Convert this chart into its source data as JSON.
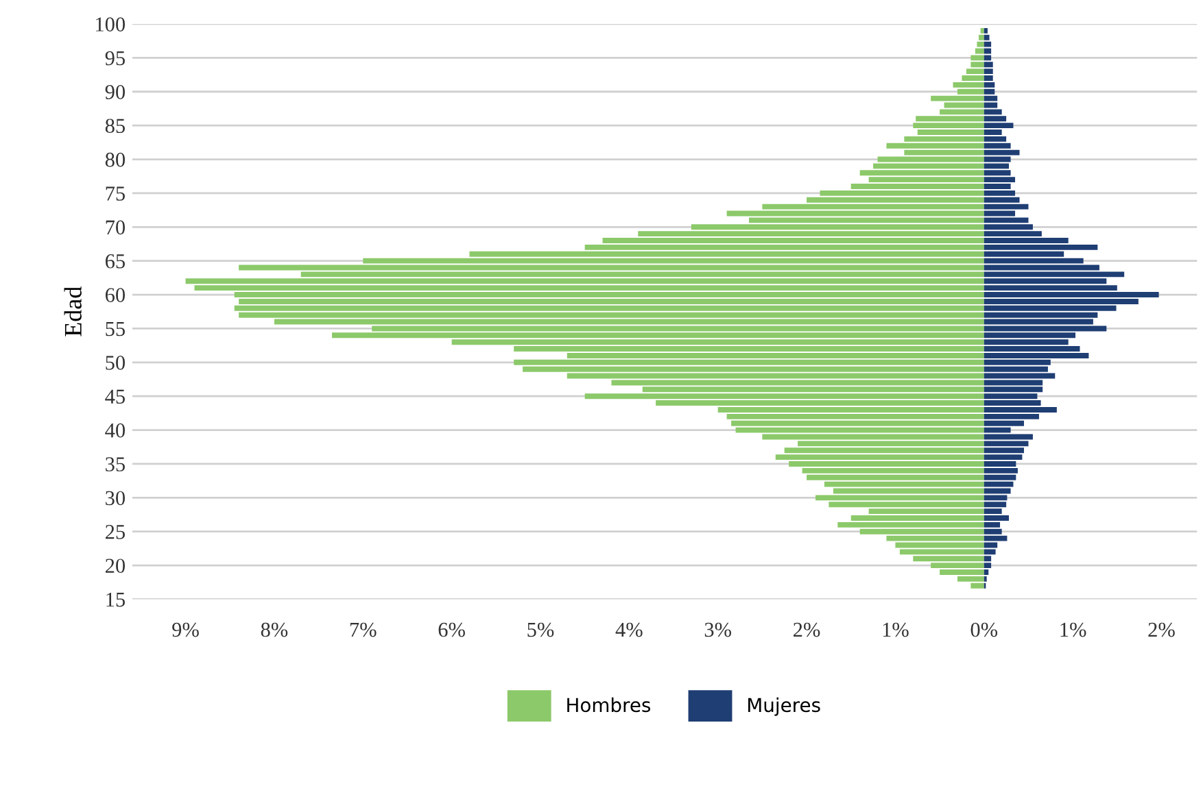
{
  "chart_data": {
    "type": "bar",
    "orientation": "horizontal",
    "stacked": true,
    "ylabel": "Edad",
    "x": [
      17,
      18,
      19,
      20,
      21,
      22,
      23,
      24,
      25,
      26,
      27,
      28,
      29,
      30,
      31,
      32,
      33,
      34,
      35,
      36,
      37,
      38,
      39,
      40,
      41,
      42,
      43,
      44,
      45,
      46,
      47,
      48,
      49,
      50,
      51,
      52,
      53,
      54,
      55,
      56,
      57,
      58,
      59,
      60,
      61,
      62,
      63,
      64,
      65,
      66,
      67,
      68,
      69,
      70,
      71,
      72,
      73,
      74,
      75,
      76,
      77,
      78,
      79,
      80,
      81,
      82,
      83,
      84,
      85,
      86,
      87,
      88,
      89,
      90,
      91,
      92,
      93,
      94,
      95,
      96,
      97,
      98,
      99
    ],
    "series": [
      {
        "name": "Hombres",
        "color": "#8cc96a",
        "values": [
          -0.15,
          -0.3,
          -0.5,
          -0.6,
          -0.8,
          -0.95,
          -1.0,
          -1.1,
          -1.4,
          -1.65,
          -1.5,
          -1.3,
          -1.75,
          -1.9,
          -1.7,
          -1.8,
          -2.0,
          -2.05,
          -2.2,
          -2.35,
          -2.25,
          -2.1,
          -2.5,
          -2.8,
          -2.85,
          -2.9,
          -3.0,
          -3.7,
          -4.5,
          -3.85,
          -4.2,
          -4.7,
          -5.2,
          -5.3,
          -4.7,
          -5.3,
          -6.0,
          -7.35,
          -6.9,
          -8.0,
          -8.4,
          -8.45,
          -8.4,
          -8.45,
          -8.9,
          -9.0,
          -7.7,
          -8.4,
          -7.0,
          -5.8,
          -4.5,
          -4.3,
          -3.9,
          -3.3,
          -2.65,
          -2.9,
          -2.5,
          -2.0,
          -1.85,
          -1.5,
          -1.3,
          -1.4,
          -1.25,
          -1.2,
          -0.9,
          -1.1,
          -0.9,
          -0.75,
          -0.8,
          -0.77,
          -0.5,
          -0.45,
          -0.6,
          -0.3,
          -0.35,
          -0.25,
          -0.2,
          -0.15,
          -0.15,
          -0.1,
          -0.08,
          -0.06,
          -0.04
        ]
      },
      {
        "name": "Mujeres",
        "color": "#1f3e73",
        "values": [
          0.02,
          0.03,
          0.05,
          0.08,
          0.08,
          0.13,
          0.15,
          0.26,
          0.2,
          0.18,
          0.28,
          0.2,
          0.25,
          0.26,
          0.3,
          0.33,
          0.36,
          0.38,
          0.36,
          0.43,
          0.45,
          0.5,
          0.55,
          0.3,
          0.45,
          0.62,
          0.82,
          0.64,
          0.6,
          0.66,
          0.66,
          0.8,
          0.72,
          0.75,
          1.18,
          1.08,
          0.95,
          1.03,
          1.38,
          1.23,
          1.28,
          1.49,
          1.74,
          1.97,
          1.5,
          1.38,
          1.58,
          1.3,
          1.12,
          0.9,
          1.28,
          0.95,
          0.65,
          0.55,
          0.5,
          0.35,
          0.5,
          0.4,
          0.35,
          0.3,
          0.35,
          0.3,
          0.28,
          0.3,
          0.4,
          0.3,
          0.25,
          0.2,
          0.33,
          0.25,
          0.2,
          0.15,
          0.15,
          0.12,
          0.12,
          0.1,
          0.1,
          0.1,
          0.08,
          0.08,
          0.08,
          0.06,
          0.04
        ]
      }
    ],
    "xlim": [
      -9.6,
      2.4
    ],
    "xticks": [
      {
        "value": -9,
        "label": "9%"
      },
      {
        "value": -8,
        "label": "8%"
      },
      {
        "value": -7,
        "label": "7%"
      },
      {
        "value": -6,
        "label": "6%"
      },
      {
        "value": -5,
        "label": "5%"
      },
      {
        "value": -4,
        "label": "4%"
      },
      {
        "value": -3,
        "label": "3%"
      },
      {
        "value": -2,
        "label": "2%"
      },
      {
        "value": -1,
        "label": "1%"
      },
      {
        "value": 0,
        "label": "0%"
      },
      {
        "value": 1,
        "label": "1%"
      },
      {
        "value": 2,
        "label": "2%"
      }
    ],
    "ylim": [
      15,
      100
    ],
    "yticks": [
      15,
      20,
      25,
      30,
      35,
      40,
      45,
      50,
      55,
      60,
      65,
      70,
      75,
      80,
      85,
      90,
      95,
      100
    ],
    "grid": "y",
    "legend": "bottom"
  }
}
